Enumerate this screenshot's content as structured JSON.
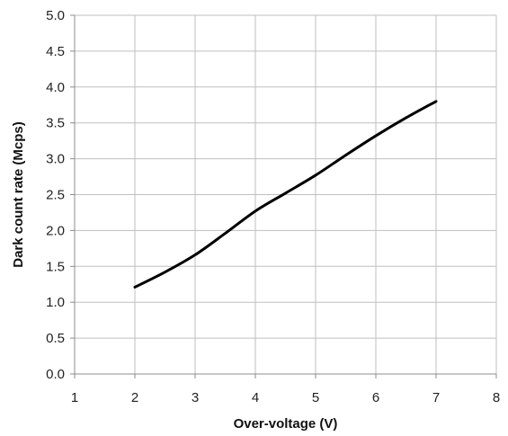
{
  "chart_data": {
    "type": "line",
    "title": "",
    "xlabel": "Over-voltage (V)",
    "ylabel": "Dark count rate (Mcps)",
    "xlim": [
      1,
      8
    ],
    "ylim": [
      0,
      5
    ],
    "x_ticks": [
      "1",
      "2",
      "3",
      "4",
      "5",
      "6",
      "7",
      "8"
    ],
    "y_ticks": [
      "0.0",
      "0.5",
      "1.0",
      "1.5",
      "2.0",
      "2.5",
      "3.0",
      "3.5",
      "4.0",
      "4.5",
      "5.0"
    ],
    "grid": true,
    "legend": "none",
    "series": [
      {
        "color": "#000000",
        "x": [
          2,
          2.5,
          3,
          3.5,
          4,
          4.5,
          5,
          5.5,
          6,
          6.5,
          7
        ],
        "y": [
          1.21,
          1.42,
          1.66,
          1.96,
          2.27,
          2.52,
          2.77,
          3.05,
          3.32,
          3.57,
          3.8
        ]
      }
    ]
  }
}
